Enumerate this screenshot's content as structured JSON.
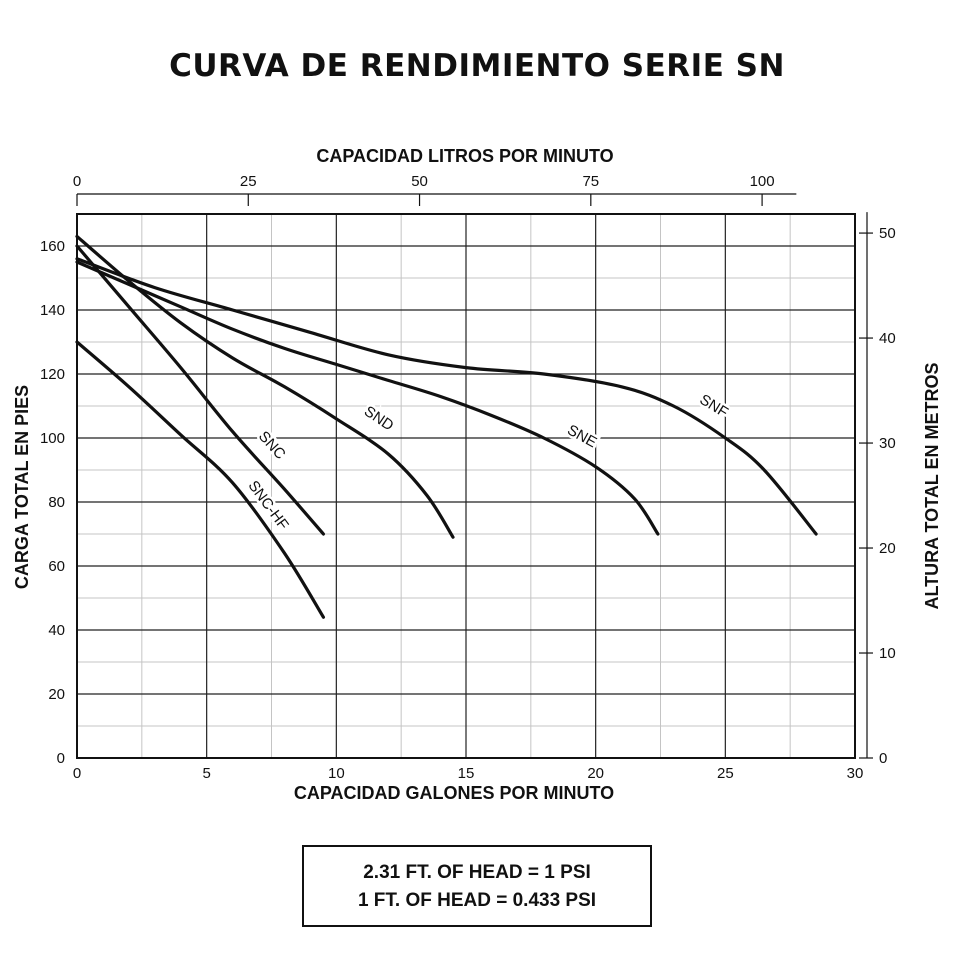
{
  "chart_data": {
    "type": "line",
    "title": "CURVA DE RENDIMIENTO SERIE SN",
    "xlabel": "CAPACIDAD GALONES POR MINUTO",
    "ylabel": "CARGA TOTAL EN PIES",
    "x2label": "CAPACIDAD LITROS POR MINUTO",
    "y2label": "ALTURA TOTAL EN METROS",
    "xlim": [
      0,
      30
    ],
    "ylim": [
      0,
      170
    ],
    "x_ticks": [
      "0",
      "5",
      "10",
      "15",
      "20",
      "25",
      "30"
    ],
    "y_ticks": [
      "0",
      "20",
      "40",
      "60",
      "80",
      "100",
      "120",
      "140",
      "160"
    ],
    "x2_ticks": [
      "0",
      "25",
      "50",
      "75",
      "100"
    ],
    "y2_ticks": [
      "0",
      "10",
      "20",
      "30",
      "40",
      "50"
    ],
    "grid": true,
    "series": [
      {
        "name": "SNC-HF",
        "x": [
          0,
          2,
          4,
          6,
          8,
          9.5
        ],
        "y": [
          130,
          116,
          101,
          86,
          64,
          44
        ]
      },
      {
        "name": "SNC",
        "x": [
          0,
          2,
          4,
          6,
          8,
          9.5
        ],
        "y": [
          160,
          141,
          122,
          102,
          84,
          70
        ]
      },
      {
        "name": "SND",
        "x": [
          0,
          2,
          4,
          6,
          8,
          10,
          12,
          13.5,
          14.5
        ],
        "y": [
          163,
          149,
          136,
          125,
          116,
          106,
          95,
          82,
          69
        ]
      },
      {
        "name": "SNE",
        "x": [
          0,
          2,
          4,
          6,
          8,
          10,
          12,
          14,
          16,
          18,
          20,
          21.5,
          22.4
        ],
        "y": [
          155,
          148,
          141,
          134,
          128,
          123,
          118,
          113,
          107,
          100,
          91,
          81,
          70
        ]
      },
      {
        "name": "SNF",
        "x": [
          0,
          3,
          6,
          9,
          12,
          15,
          18,
          21,
          23,
          25,
          26.5,
          28.5
        ],
        "y": [
          156,
          147,
          140,
          133,
          126,
          122,
          120,
          116,
          110,
          100,
          90,
          70
        ]
      }
    ]
  },
  "conversion_note": {
    "line1": "2.31 FT. OF HEAD = 1 PSI",
    "line2": "1 FT. OF HEAD = 0.433 PSI"
  }
}
